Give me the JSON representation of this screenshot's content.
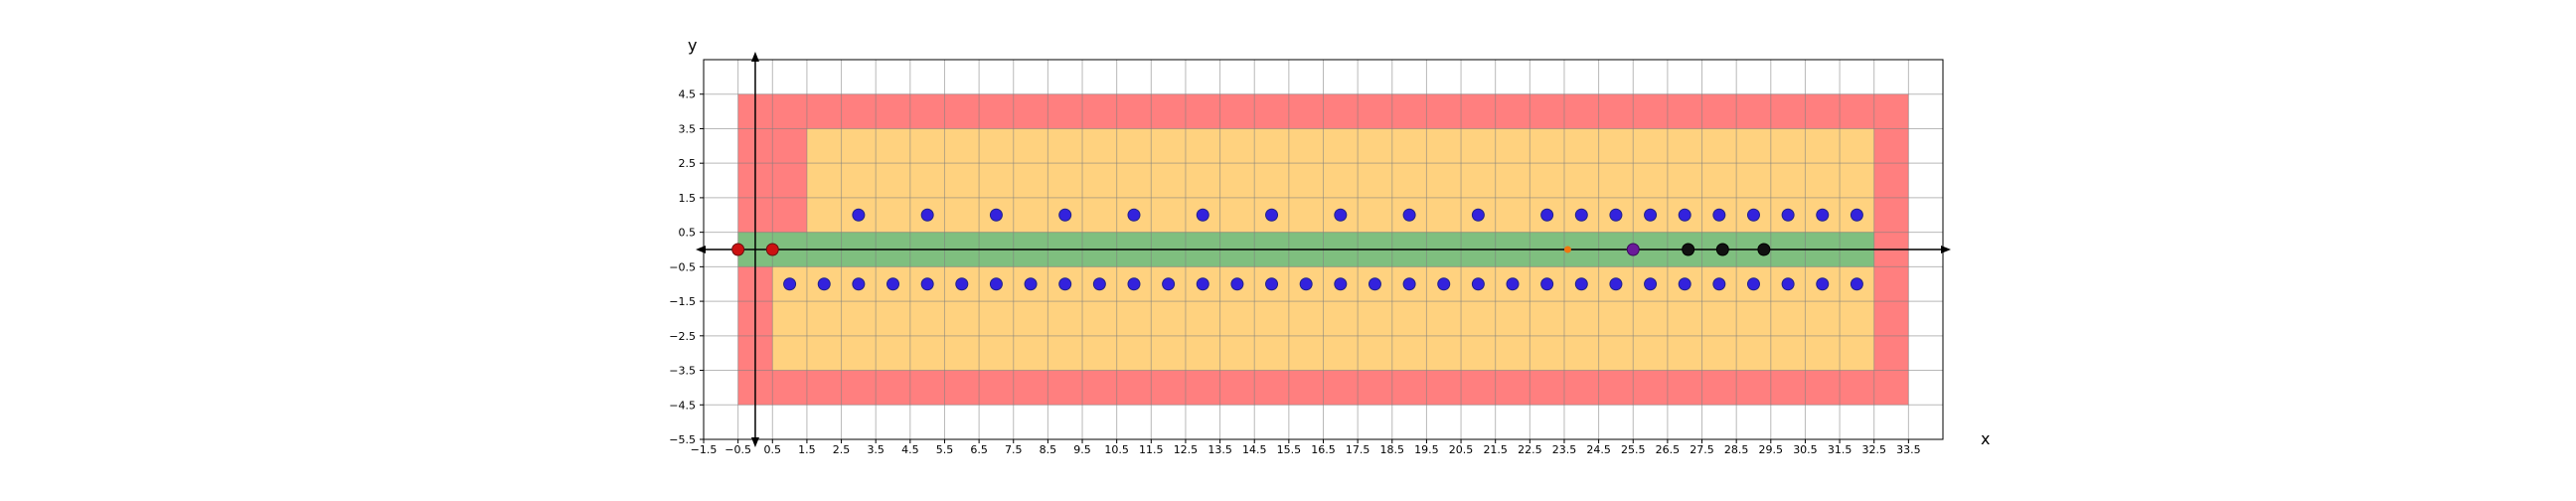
{
  "chart_data": {
    "type": "scatter",
    "title": "",
    "xlabel": "x",
    "ylabel": "y",
    "xlim": [
      -1.5,
      34.5
    ],
    "ylim": [
      -5.5,
      5.5
    ],
    "grid": true,
    "x_ticks": [
      "-1.5",
      "-0.5",
      "0.5",
      "1.5",
      "2.5",
      "3.5",
      "4.5",
      "5.5",
      "6.5",
      "7.5",
      "8.5",
      "9.5",
      "10.5",
      "11.5",
      "12.5",
      "13.5",
      "14.5",
      "15.5",
      "16.5",
      "17.5",
      "18.5",
      "19.5",
      "20.5",
      "21.5",
      "22.5",
      "23.5",
      "24.5",
      "25.5",
      "26.5",
      "27.5",
      "28.5",
      "29.5",
      "30.5",
      "31.5",
      "32.5",
      "33.5"
    ],
    "y_ticks": [
      "4.5",
      "3.5",
      "2.5",
      "1.5",
      "0.5",
      "-0.5",
      "-1.5",
      "-2.5",
      "-3.5",
      "-4.5",
      "-5.5"
    ],
    "regions": [
      {
        "name": "outer",
        "color": "#ff7f7f",
        "x": [
          -0.5,
          33.5
        ],
        "y": [
          -4.5,
          4.5
        ]
      },
      {
        "name": "upper-inner",
        "color": "#ffd27f",
        "x": [
          1.5,
          32.5
        ],
        "y": [
          0.5,
          3.5
        ]
      },
      {
        "name": "lower-inner",
        "color": "#ffd27f",
        "x": [
          0.5,
          32.5
        ],
        "y": [
          -3.5,
          -0.5
        ]
      },
      {
        "name": "band",
        "color": "#7fbf7f",
        "x": [
          -0.5,
          32.5
        ],
        "y": [
          -0.5,
          0.5
        ]
      }
    ],
    "series": [
      {
        "color": "#3322dd",
        "edge": "#222288",
        "points": [
          [
            3,
            1
          ],
          [
            5,
            1
          ],
          [
            7,
            1
          ],
          [
            9,
            1
          ],
          [
            11,
            1
          ],
          [
            13,
            1
          ],
          [
            15,
            1
          ],
          [
            17,
            1
          ],
          [
            19,
            1
          ],
          [
            21,
            1
          ],
          [
            23,
            1
          ],
          [
            24,
            1
          ],
          [
            25,
            1
          ],
          [
            26,
            1
          ],
          [
            27,
            1
          ],
          [
            28,
            1
          ],
          [
            29,
            1
          ],
          [
            30,
            1
          ],
          [
            31,
            1
          ],
          [
            32,
            1
          ],
          [
            1,
            -1
          ],
          [
            2,
            -1
          ],
          [
            3,
            -1
          ],
          [
            4,
            -1
          ],
          [
            5,
            -1
          ],
          [
            6,
            -1
          ],
          [
            7,
            -1
          ],
          [
            8,
            -1
          ],
          [
            9,
            -1
          ],
          [
            10,
            -1
          ],
          [
            11,
            -1
          ],
          [
            12,
            -1
          ],
          [
            13,
            -1
          ],
          [
            14,
            -1
          ],
          [
            15,
            -1
          ],
          [
            16,
            -1
          ],
          [
            17,
            -1
          ],
          [
            18,
            -1
          ],
          [
            19,
            -1
          ],
          [
            20,
            -1
          ],
          [
            21,
            -1
          ],
          [
            22,
            -1
          ],
          [
            23,
            -1
          ],
          [
            24,
            -1
          ],
          [
            25,
            -1
          ],
          [
            26,
            -1
          ],
          [
            27,
            -1
          ],
          [
            28,
            -1
          ],
          [
            29,
            -1
          ],
          [
            30,
            -1
          ],
          [
            31,
            -1
          ],
          [
            32,
            -1
          ]
        ]
      },
      {
        "color": "#cc1111",
        "edge": "#661111",
        "points": [
          [
            -0.5,
            0
          ],
          [
            0.5,
            0
          ]
        ]
      },
      {
        "color": "#ee7711",
        "edge": "#ee7711",
        "points": [
          [
            23.6,
            0
          ]
        ],
        "small": true
      },
      {
        "color": "#6a1b9a",
        "edge": "#3a0a5a",
        "points": [
          [
            25.5,
            0
          ]
        ]
      },
      {
        "color": "#111111",
        "edge": "#000000",
        "points": [
          [
            27.1,
            0
          ],
          [
            28.1,
            0
          ],
          [
            29.3,
            0
          ]
        ]
      }
    ]
  }
}
